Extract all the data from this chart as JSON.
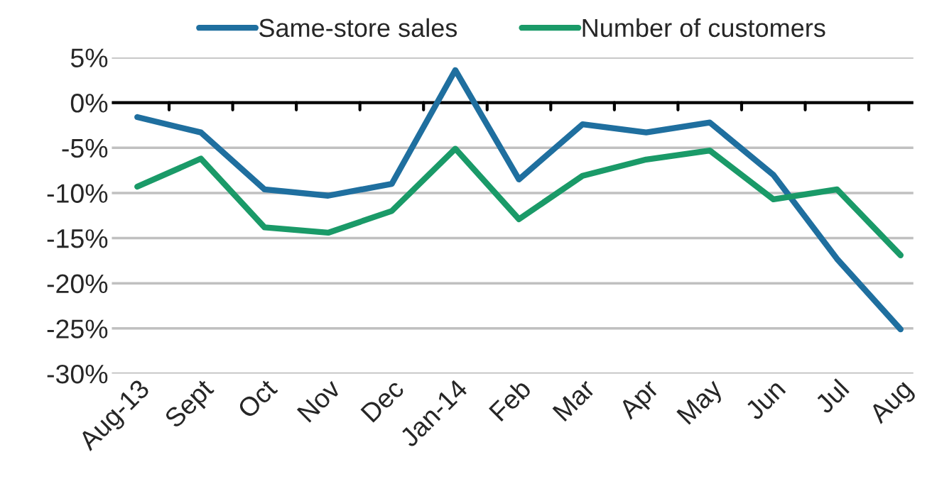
{
  "chart_data": {
    "type": "line",
    "categories": [
      "Aug-13",
      "Sept",
      "Oct",
      "Nov",
      "Dec",
      "Jan-14",
      "Feb",
      "Mar",
      "Apr",
      "May",
      "Jun",
      "Jul",
      "Aug"
    ],
    "series": [
      {
        "name": "Same-store sales",
        "color": "#1f6f9f",
        "values": [
          -1.6,
          -3.3,
          -9.6,
          -10.3,
          -9.0,
          3.6,
          -8.5,
          -2.4,
          -3.3,
          -2.2,
          -8.0,
          -17.3,
          -25.1
        ]
      },
      {
        "name": "Number of customers",
        "color": "#1a9a68",
        "values": [
          -9.3,
          -6.2,
          -13.8,
          -14.4,
          -12.0,
          -5.1,
          -12.9,
          -8.1,
          -6.3,
          -5.3,
          -10.7,
          -9.6,
          -16.9
        ]
      }
    ],
    "ylim": [
      -30,
      5
    ],
    "yticks": [
      {
        "value": 5,
        "label": "5%"
      },
      {
        "value": 0,
        "label": "0%"
      },
      {
        "value": -5,
        "label": "-5%"
      },
      {
        "value": -10,
        "label": "-10%"
      },
      {
        "value": -15,
        "label": "-15%"
      },
      {
        "value": -20,
        "label": "-20%"
      },
      {
        "value": -25,
        "label": "-25%"
      },
      {
        "value": -30,
        "label": "-30%"
      }
    ],
    "ref_lines": [
      {
        "axis": "y",
        "value": 0,
        "color": "#000000"
      }
    ],
    "grid": "y",
    "legend": "top",
    "marker": "none",
    "line_style": "solid"
  }
}
